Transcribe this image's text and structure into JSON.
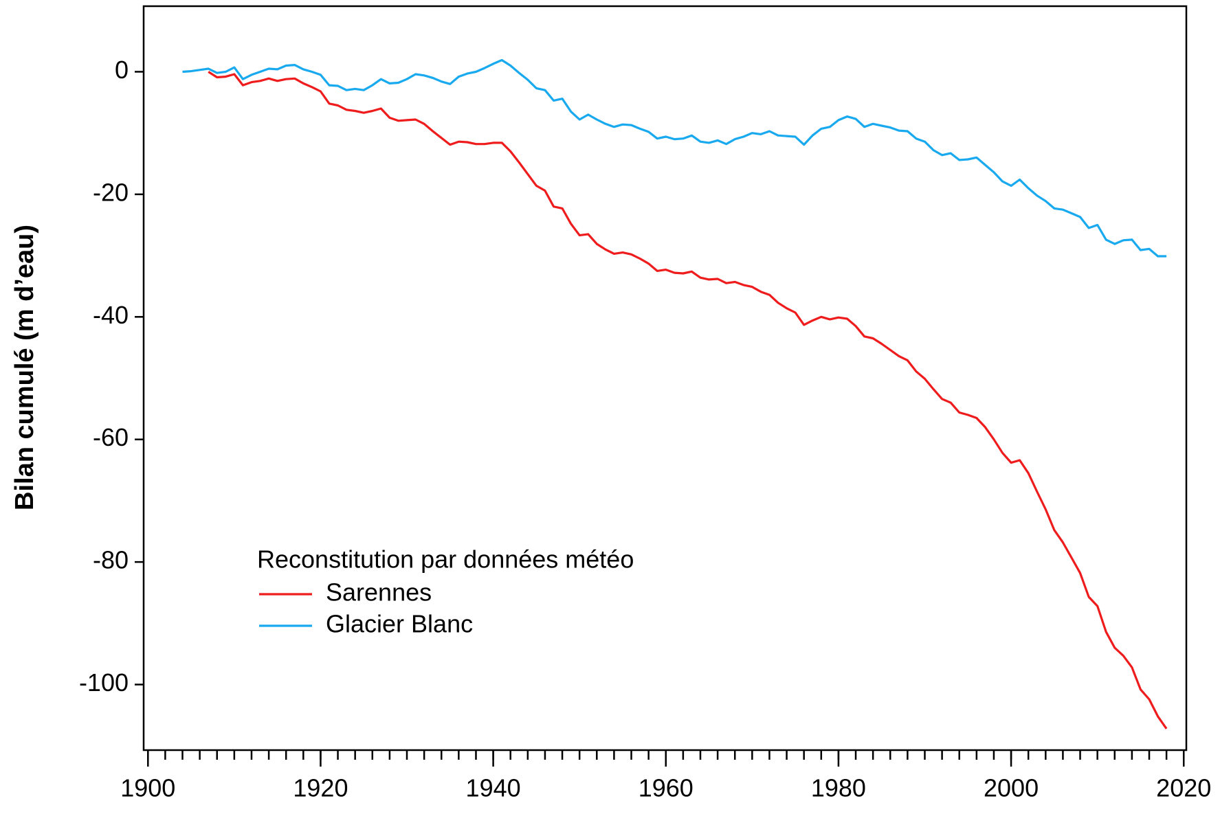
{
  "chart_data": {
    "type": "line",
    "y_label": "Bilan cumulé (m d’eau)",
    "legend_title": "Reconstitution par données météo",
    "legend": "lower left",
    "x": [
      1904,
      1905,
      1906,
      1907,
      1908,
      1909,
      1910,
      1911,
      1912,
      1913,
      1914,
      1915,
      1916,
      1917,
      1918,
      1919,
      1920,
      1921,
      1922,
      1923,
      1924,
      1925,
      1926,
      1927,
      1928,
      1929,
      1930,
      1931,
      1932,
      1933,
      1934,
      1935,
      1936,
      1937,
      1938,
      1939,
      1940,
      1941,
      1942,
      1943,
      1944,
      1945,
      1946,
      1947,
      1948,
      1949,
      1950,
      1951,
      1952,
      1953,
      1954,
      1955,
      1956,
      1957,
      1958,
      1959,
      1960,
      1961,
      1962,
      1963,
      1964,
      1965,
      1966,
      1967,
      1968,
      1969,
      1970,
      1971,
      1972,
      1973,
      1974,
      1975,
      1976,
      1977,
      1978,
      1979,
      1980,
      1981,
      1982,
      1983,
      1984,
      1985,
      1986,
      1987,
      1988,
      1989,
      1990,
      1991,
      1992,
      1993,
      1994,
      1995,
      1996,
      1997,
      1998,
      1999,
      2000,
      2001,
      2002,
      2003,
      2004,
      2005,
      2006,
      2007,
      2008,
      2009,
      2010,
      2011,
      2012,
      2013,
      2014,
      2015,
      2016,
      2017,
      2018
    ],
    "series": [
      {
        "name": "Sarennes",
        "color": "#ee1c1c",
        "values": [
          null,
          null,
          null,
          0,
          -0.9,
          -0.8,
          -0.4,
          -2.2,
          -1.7,
          -1.5,
          -1.1,
          -1.5,
          -1.2,
          -1.1,
          -1.9,
          -2.5,
          -3.2,
          -5.2,
          -5.5,
          -6.2,
          -6.4,
          -6.7,
          -6.4,
          -6,
          -7.5,
          -8,
          -7.9,
          -7.8,
          -8.5,
          -9.7,
          -10.8,
          -11.9,
          -11.4,
          -11.5,
          -11.8,
          -11.8,
          -11.6,
          -11.6,
          -13,
          -14.8,
          -16.7,
          -18.6,
          -19.4,
          -22,
          -22.3,
          -24.8,
          -26.7,
          -26.5,
          -28.1,
          -29,
          -29.7,
          -29.5,
          -29.8,
          -30.5,
          -31.3,
          -32.5,
          -32.3,
          -32.8,
          -32.9,
          -32.6,
          -33.6,
          -33.9,
          -33.8,
          -34.5,
          -34.3,
          -34.8,
          -35.1,
          -35.9,
          -36.4,
          -37.7,
          -38.6,
          -39.3,
          -41.3,
          -40.6,
          -40,
          -40.4,
          -40.1,
          -40.3,
          -41.5,
          -43.2,
          -43.5,
          -44.4,
          -45.4,
          -46.4,
          -47.1,
          -48.9,
          -50.1,
          -51.8,
          -53.4,
          -54,
          -55.6,
          -56,
          -56.5,
          -58,
          -60,
          -62.2,
          -63.8,
          -63.4,
          -65.5,
          -68.5,
          -71.4,
          -74.8,
          -76.8,
          -79.3,
          -81.8,
          -85.7,
          -87.2,
          -91.4,
          -94,
          -95.3,
          -97.2,
          -100.8,
          -102.4,
          -105.2,
          -107.2
        ]
      },
      {
        "name": "Glacier Blanc",
        "color": "#19a9ef",
        "values": [
          0,
          0.1,
          0.3,
          0.5,
          -0.2,
          0,
          0.7,
          -1.2,
          -0.5,
          0,
          0.5,
          0.4,
          1,
          1.1,
          0.4,
          0,
          -0.5,
          -2.2,
          -2.3,
          -3,
          -2.8,
          -3,
          -2.2,
          -1.2,
          -1.9,
          -1.8,
          -1.2,
          -0.4,
          -0.6,
          -1,
          -1.6,
          -2,
          -0.8,
          -0.3,
          0,
          0.6,
          1.3,
          1.9,
          1,
          -0.2,
          -1.3,
          -2.7,
          -3,
          -4.7,
          -4.4,
          -6.5,
          -7.8,
          -7,
          -7.8,
          -8.5,
          -9,
          -8.6,
          -8.7,
          -9.3,
          -9.8,
          -10.9,
          -10.6,
          -11,
          -10.9,
          -10.4,
          -11.4,
          -11.6,
          -11.2,
          -11.8,
          -11,
          -10.6,
          -10,
          -10.2,
          -9.7,
          -10.4,
          -10.5,
          -10.6,
          -11.9,
          -10.4,
          -9.3,
          -9,
          -7.9,
          -7.3,
          -7.7,
          -9,
          -8.5,
          -8.8,
          -9.1,
          -9.6,
          -9.7,
          -10.9,
          -11.4,
          -12.8,
          -13.6,
          -13.3,
          -14.4,
          -14.3,
          -14,
          -15.2,
          -16.4,
          -17.9,
          -18.6,
          -17.6,
          -19,
          -20.2,
          -21.1,
          -22.3,
          -22.5,
          -23.1,
          -23.7,
          -25.5,
          -25,
          -27.4,
          -28.1,
          -27.5,
          -27.4,
          -29.1,
          -28.9,
          -30.1,
          -30.1
        ]
      }
    ],
    "xlim": [
      1899.5,
      2020.3
    ],
    "xticks": [
      1900,
      1920,
      1940,
      1960,
      1980,
      2000,
      2020
    ],
    "xminor_step": 2,
    "ylim": [
      -110.7,
      10.7
    ],
    "yticks": [
      -100,
      -80,
      -60,
      -40,
      -20,
      0
    ],
    "grid": false
  }
}
